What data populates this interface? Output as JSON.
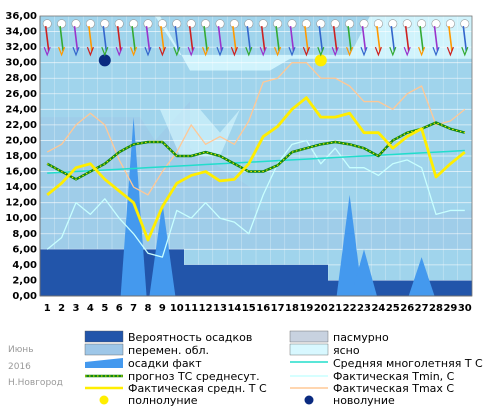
{
  "chart_data": {
    "type": "line",
    "title": "",
    "month_label": "Июнь",
    "year_label": "2016",
    "city_label": "Н.Новгород",
    "x": [
      1,
      2,
      3,
      4,
      5,
      6,
      7,
      8,
      9,
      10,
      11,
      12,
      13,
      14,
      15,
      16,
      17,
      18,
      19,
      20,
      21,
      22,
      23,
      24,
      25,
      26,
      27,
      28,
      29,
      30
    ],
    "ylim": [
      0,
      36
    ],
    "yticks": [
      "0,00",
      "2,00",
      "4,00",
      "6,00",
      "8,00",
      "10,00",
      "12,00",
      "14,00",
      "16,00",
      "18,00",
      "20,00",
      "22,00",
      "24,00",
      "26,00",
      "28,00",
      "30,00",
      "32,00",
      "34,00",
      "36,00"
    ],
    "series": [
      {
        "name": "Фактическая средн. Т С",
        "values": [
          13.0,
          14.5,
          16.5,
          17.0,
          15.0,
          13.5,
          12.0,
          7.2,
          11.5,
          14.5,
          15.5,
          16.0,
          14.8,
          15.0,
          17.0,
          20.5,
          21.8,
          24.0,
          25.5,
          23.0,
          23.0,
          23.5,
          21.0,
          21.0,
          19.0,
          20.5,
          21.5,
          15.3,
          17.0,
          18.5
        ],
        "color": "#ffee00"
      },
      {
        "name": "прогноз ТС среднесут.",
        "values": [
          17.0,
          16.0,
          15.0,
          16.0,
          17.0,
          18.5,
          19.5,
          19.8,
          19.8,
          18.0,
          18.0,
          18.5,
          18.0,
          17.0,
          16.0,
          16.0,
          16.8,
          18.5,
          19.0,
          19.5,
          19.8,
          19.5,
          19.0,
          18.0,
          20.0,
          21.0,
          21.5,
          22.3,
          21.5,
          21.0
        ],
        "color": "#118811"
      },
      {
        "name": "Средняя многолетняя Т С",
        "values": [
          15.8,
          15.9,
          16.0,
          16.1,
          16.2,
          16.3,
          16.4,
          16.5,
          16.6,
          16.7,
          16.8,
          16.9,
          17.0,
          17.1,
          17.2,
          17.3,
          17.4,
          17.5,
          17.6,
          17.7,
          17.8,
          17.9,
          18.0,
          18.1,
          18.2,
          18.3,
          18.4,
          18.5,
          18.6,
          18.7
        ],
        "color": "#22ddcc"
      },
      {
        "name": "Фактическая Tmin, С",
        "values": [
          6.0,
          7.5,
          12.0,
          10.5,
          12.5,
          10.0,
          8.0,
          5.5,
          5.0,
          11.0,
          10.0,
          12.0,
          10.0,
          9.5,
          8.0,
          13.0,
          17.0,
          19.5,
          20.0,
          17.0,
          19.0,
          16.5,
          16.5,
          15.5,
          17.0,
          17.5,
          16.5,
          10.5,
          11.0,
          11.0
        ],
        "color": "#c8ffff"
      },
      {
        "name": "Фактическая Tmax C",
        "values": [
          18.5,
          19.5,
          22.0,
          23.5,
          22.0,
          17.5,
          14.0,
          13.0,
          16.0,
          18.5,
          22.0,
          19.5,
          20.5,
          19.5,
          22.5,
          27.5,
          28.0,
          30.0,
          30.0,
          28.0,
          28.0,
          27.0,
          25.0,
          25.0,
          24.0,
          26.0,
          27.0,
          22.0,
          22.5,
          24.0
        ],
        "color": "#ffc896"
      }
    ],
    "precip_probability": [
      6,
      6,
      6,
      6,
      6,
      6,
      6,
      6,
      6,
      6,
      4,
      4,
      4,
      4,
      4,
      4,
      4,
      4,
      4,
      4,
      2,
      2,
      2,
      2,
      2,
      2,
      2,
      2,
      2,
      2
    ],
    "precip_actual": [
      0,
      0,
      0,
      0,
      0,
      0,
      23,
      0,
      12,
      0,
      0,
      0,
      0,
      0,
      0,
      0,
      0,
      0,
      0,
      0,
      0,
      13,
      6,
      0,
      0,
      0,
      5,
      0,
      0,
      0
    ],
    "moon": {
      "full_day": 20,
      "new_day": 5
    },
    "legend": {
      "precip_prob": "Вероятность осадков",
      "overcast": "пасмурно",
      "partly_cloudy": "перемен. обл.",
      "clear": "ясно",
      "precip_actual": "осадки факт",
      "avg_long": "Средняя многолетняя Т С",
      "forecast": "прогноз ТС среднесут.",
      "tmin": "Фактическая Tmin, С",
      "actual_avg": "Фактическая средн. Т С",
      "tmax": "Фактическая Tmax C",
      "full_moon": "полнолуние",
      "new_moon": "новолуние"
    },
    "colors": {
      "precip_prob": "#2255aa",
      "precip_actual": "#4499ee",
      "overcast": "#c8d2e0",
      "partly_cloudy": "#9ec7e8",
      "clear": "#d8f8ff",
      "plot_bg": "#a0d4ec",
      "full_moon": "#ffee00",
      "new_moon": "#0a2a80"
    }
  }
}
